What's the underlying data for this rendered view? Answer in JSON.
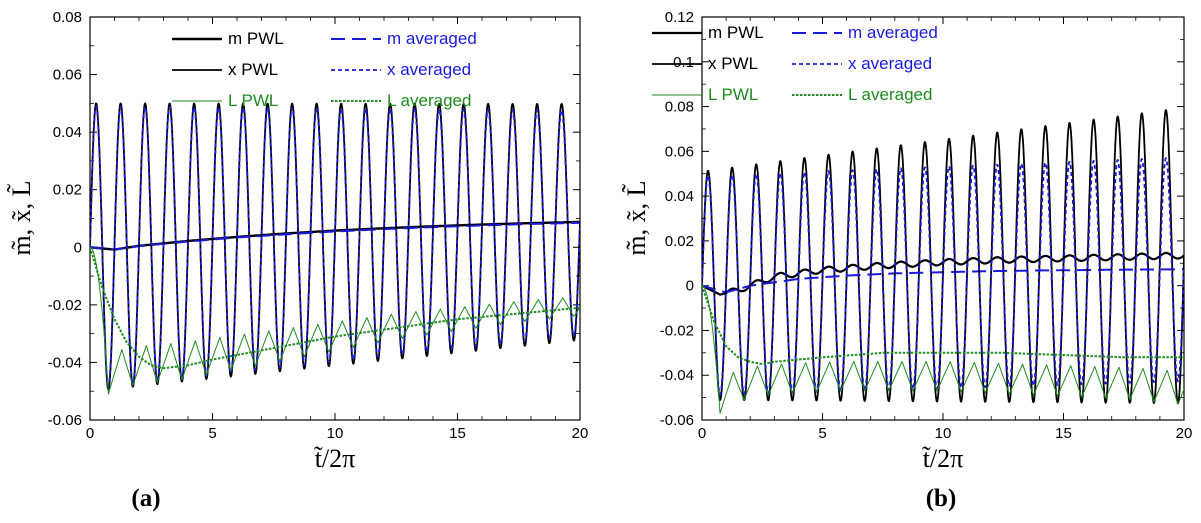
{
  "chart_data": [
    {
      "type": "line",
      "panel_label": "(a)",
      "xlabel": "t̃/2π",
      "ylabel": "m̃, x̃, L̃",
      "xlim": [
        0,
        20
      ],
      "ylim": [
        -0.06,
        0.08
      ],
      "x_ticks": [
        "0",
        "5",
        "10",
        "15",
        "20"
      ],
      "y_ticks": [
        "-0.06",
        "-0.04",
        "-0.02",
        "0",
        "0.02",
        "0.04",
        "0.06",
        "0.08"
      ],
      "x_tick_values": [
        0,
        5,
        10,
        15,
        20
      ],
      "y_tick_values": [
        -0.06,
        -0.04,
        -0.02,
        0,
        0.02,
        0.04,
        0.06,
        0.08
      ],
      "grid": false,
      "legend_position": "top",
      "series": [
        {
          "name": "m PWL",
          "style": "solid-thick",
          "color": "#000000",
          "x": [
            0,
            1,
            2,
            4,
            6,
            8,
            10,
            12,
            14,
            16,
            18,
            20
          ],
          "values": [
            0,
            -0.0008,
            0.0005,
            0.0022,
            0.0036,
            0.0048,
            0.0058,
            0.0066,
            0.0073,
            0.0079,
            0.0084,
            0.0088
          ]
        },
        {
          "name": "m averaged",
          "style": "long-dash",
          "color": "#1a1adc",
          "x": [
            0,
            1,
            2,
            4,
            6,
            8,
            10,
            12,
            14,
            16,
            18,
            20
          ],
          "values": [
            0,
            -0.0008,
            0.0004,
            0.002,
            0.0034,
            0.0045,
            0.0055,
            0.0063,
            0.007,
            0.0076,
            0.0081,
            0.0085
          ]
        },
        {
          "name": "x PWL",
          "style": "solid",
          "color": "#000000",
          "oscillation": {
            "amplitude_start": 0.05,
            "amplitude_end": 0.041,
            "offset_start": 0,
            "offset_end": 0.0088,
            "period": 1
          }
        },
        {
          "name": "x averaged",
          "style": "short-dash",
          "color": "#1a1adc",
          "oscillation": {
            "amplitude_start": 0.049,
            "amplitude_end": 0.039,
            "offset_start": 0,
            "offset_end": 0.0085,
            "period": 1
          }
        },
        {
          "name": "L PWL",
          "style": "thin-sawtooth",
          "color": "#1f8a1f",
          "x": [
            0,
            0.75,
            1.75,
            2.75,
            3.75,
            5,
            7.5,
            10,
            12.5,
            15,
            17.5,
            19.75
          ],
          "values": [
            0,
            -0.051,
            -0.048,
            -0.047,
            -0.046,
            -0.044,
            -0.04,
            -0.036,
            -0.032,
            -0.029,
            -0.026,
            -0.024
          ]
        },
        {
          "name": "L averaged",
          "style": "dotted",
          "color": "#1f8a1f",
          "x": [
            0,
            0.5,
            1,
            1.5,
            2,
            2.5,
            3,
            4,
            5,
            7.5,
            10,
            12.5,
            15,
            17.5,
            20
          ],
          "values": [
            0,
            -0.014,
            -0.025,
            -0.033,
            -0.038,
            -0.041,
            -0.042,
            -0.041,
            -0.039,
            -0.035,
            -0.031,
            -0.028,
            -0.025,
            -0.023,
            -0.021
          ]
        }
      ]
    },
    {
      "type": "line",
      "panel_label": "(b)",
      "xlabel": "t̃/2π",
      "ylabel": "m̃, x̃, L̃",
      "xlim": [
        0,
        20
      ],
      "ylim": [
        -0.06,
        0.12
      ],
      "x_ticks": [
        "0",
        "5",
        "10",
        "15",
        "20"
      ],
      "y_ticks": [
        "-0.06",
        "-0.04",
        "-0.02",
        "0",
        "0.02",
        "0.04",
        "0.06",
        "0.08",
        "0.1",
        "0.12"
      ],
      "x_tick_values": [
        0,
        5,
        10,
        15,
        20
      ],
      "y_tick_values": [
        -0.06,
        -0.04,
        -0.02,
        0,
        0.02,
        0.04,
        0.06,
        0.08,
        0.1,
        0.12
      ],
      "grid": false,
      "legend_position": "top",
      "series": [
        {
          "name": "m PWL",
          "style": "solid-thick-wavy",
          "color": "#000000",
          "x": [
            0,
            0.75,
            1.5,
            3,
            5,
            7.5,
            10,
            12.5,
            15,
            17.5,
            20
          ],
          "values": [
            0,
            -0.004,
            -0.002,
            0.004,
            0.007,
            0.009,
            0.0105,
            0.0115,
            0.0122,
            0.0128,
            0.0135
          ]
        },
        {
          "name": "m averaged",
          "style": "long-dash",
          "color": "#1a1adc",
          "x": [
            0,
            1,
            2,
            4,
            6,
            8,
            10,
            12,
            14,
            16,
            18,
            20
          ],
          "values": [
            0,
            -0.003,
            0.0,
            0.003,
            0.0045,
            0.0055,
            0.006,
            0.0065,
            0.0068,
            0.007,
            0.0072,
            0.0073
          ]
        },
        {
          "name": "x PWL",
          "style": "solid",
          "color": "#000000",
          "oscillation": {
            "amplitude_start": 0.051,
            "amplitude_end": 0.066,
            "offset_start": 0,
            "offset_end": 0.0135,
            "period": 1
          }
        },
        {
          "name": "x averaged",
          "style": "short-dash",
          "color": "#1a1adc",
          "oscillation": {
            "amplitude_start": 0.049,
            "amplitude_end": 0.05,
            "offset_start": 0,
            "offset_end": 0.0073,
            "period": 1
          }
        },
        {
          "name": "L PWL",
          "style": "thin-sawtooth",
          "color": "#1f8a1f",
          "x": [
            0,
            0.75,
            1.75,
            2.75,
            4,
            6,
            8,
            10,
            12,
            14,
            16,
            18,
            19.75
          ],
          "values": [
            0,
            -0.057,
            -0.051,
            -0.049,
            -0.048,
            -0.047,
            -0.047,
            -0.047,
            -0.048,
            -0.049,
            -0.05,
            -0.051,
            -0.053
          ]
        },
        {
          "name": "L averaged",
          "style": "dotted",
          "color": "#1f8a1f",
          "x": [
            0,
            0.5,
            1,
            1.5,
            2,
            2.5,
            3,
            5,
            7.5,
            10,
            12.5,
            15,
            17.5,
            20
          ],
          "values": [
            0,
            -0.016,
            -0.027,
            -0.032,
            -0.034,
            -0.035,
            -0.034,
            -0.032,
            -0.03,
            -0.03,
            -0.03,
            -0.031,
            -0.032,
            -0.032
          ]
        }
      ]
    }
  ]
}
